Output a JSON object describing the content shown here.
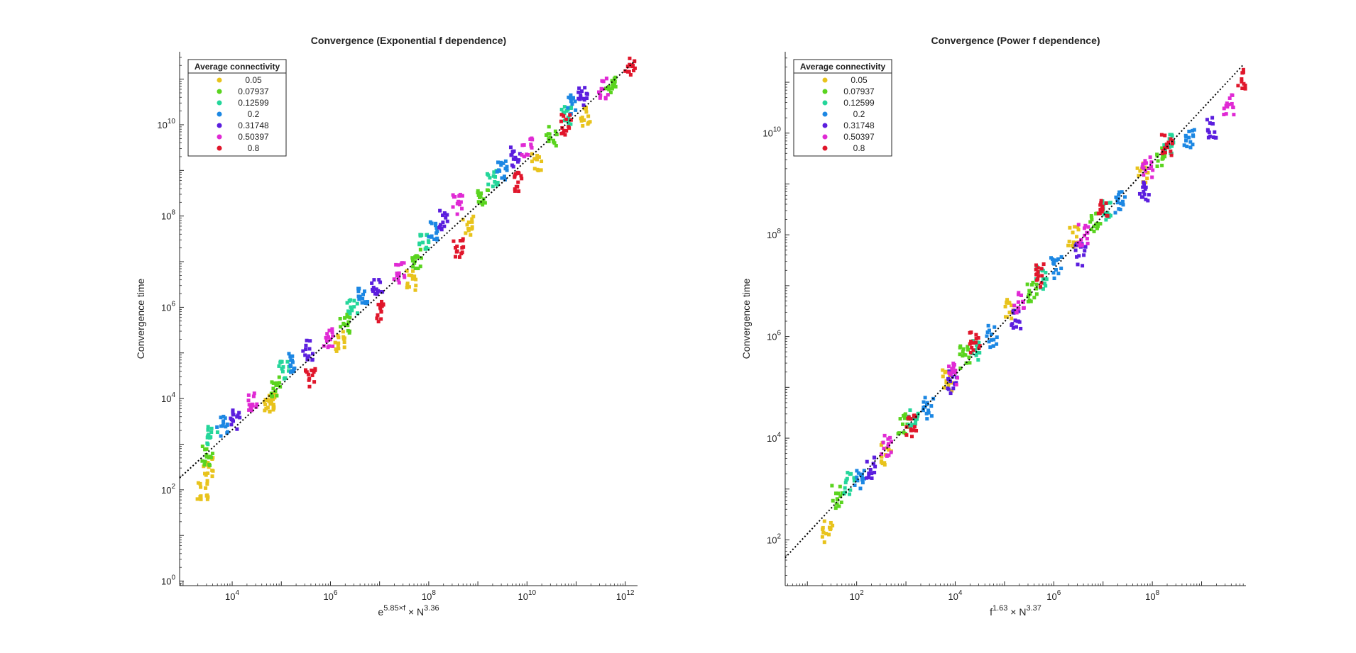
{
  "chart_data": [
    {
      "type": "scatter",
      "title": "Convergence (Exponential f dependence)",
      "xlabel_base": "e",
      "xlabel_exp1": "5.85×f",
      "xlabel_mid": " × N",
      "xlabel_exp2": "3.36",
      "ylabel": "Convergence time",
      "x_scale": "log",
      "y_scale": "log",
      "xlim_log10": [
        2.93,
        12.25
      ],
      "ylim_log10": [
        -0.1,
        11.6
      ],
      "x_ticks": [
        {
          "base": "10",
          "exp": "4",
          "log": 4
        },
        {
          "base": "10",
          "exp": "6",
          "log": 6
        },
        {
          "base": "10",
          "exp": "8",
          "log": 8
        },
        {
          "base": "10",
          "exp": "10",
          "log": 10
        },
        {
          "base": "10",
          "exp": "12",
          "log": 12
        }
      ],
      "y_ticks": [
        {
          "base": "10",
          "exp": "0",
          "log": 0
        },
        {
          "base": "10",
          "exp": "2",
          "log": 2
        },
        {
          "base": "10",
          "exp": "4",
          "log": 4
        },
        {
          "base": "10",
          "exp": "6",
          "log": 6
        },
        {
          "base": "10",
          "exp": "8",
          "log": 8
        },
        {
          "base": "10",
          "exp": "10",
          "log": 10
        }
      ],
      "legend_title": "Average connectivity",
      "legend_location": "top-left",
      "fit_line": {
        "style": "dotted",
        "color": "#000000",
        "points_log10": [
          [
            2.93,
            2.26
          ],
          [
            12.2,
            11.4
          ]
        ]
      },
      "series": [
        {
          "name": "0.05",
          "color": "#e8c31c",
          "clusters_log10": [
            [
              3.4,
              2.0
            ],
            [
              3.5,
              2.5
            ],
            [
              4.75,
              3.9
            ],
            [
              4.8,
              4.0
            ],
            [
              6.2,
              5.25
            ],
            [
              7.65,
              6.6
            ],
            [
              8.8,
              7.8
            ],
            [
              10.2,
              9.15
            ],
            [
              11.2,
              10.2
            ]
          ]
        },
        {
          "name": "0.07937",
          "color": "#5ad41f",
          "clusters_log10": [
            [
              3.5,
              2.75
            ],
            [
              4.9,
              4.25
            ],
            [
              6.3,
              5.65
            ],
            [
              7.75,
              7.05
            ],
            [
              9.1,
              8.4
            ],
            [
              10.5,
              9.75
            ],
            [
              11.7,
              10.9
            ]
          ]
        },
        {
          "name": "0.12599",
          "color": "#24d69a",
          "clusters_log10": [
            [
              3.6,
              3.2
            ],
            [
              5.05,
              4.6
            ],
            [
              6.45,
              6.0
            ],
            [
              7.9,
              7.4
            ],
            [
              9.3,
              8.8
            ],
            [
              10.8,
              10.2
            ]
          ]
        },
        {
          "name": "0.2",
          "color": "#1c87e3",
          "clusters_log10": [
            [
              3.8,
              3.4
            ],
            [
              5.25,
              4.8
            ],
            [
              6.65,
              6.25
            ],
            [
              8.1,
              7.7
            ],
            [
              9.5,
              9.0
            ],
            [
              10.9,
              10.45
            ]
          ]
        },
        {
          "name": "0.31748",
          "color": "#5b1ede",
          "clusters_log10": [
            [
              4.05,
              3.55
            ],
            [
              5.55,
              5.05
            ],
            [
              6.95,
              6.4
            ],
            [
              8.3,
              7.9
            ],
            [
              9.75,
              9.3
            ],
            [
              11.15,
              10.6
            ]
          ]
        },
        {
          "name": "0.50397",
          "color": "#e02ad4",
          "clusters_log10": [
            [
              4.4,
              3.95
            ],
            [
              5.95,
              5.35
            ],
            [
              7.4,
              6.75
            ],
            [
              8.6,
              8.25
            ],
            [
              10.0,
              9.5
            ],
            [
              11.55,
              10.8
            ]
          ]
        },
        {
          "name": "0.8",
          "color": "#e0162b",
          "clusters_log10": [
            [
              5.6,
              4.45
            ],
            [
              7.0,
              5.9
            ],
            [
              8.6,
              7.3
            ],
            [
              9.8,
              8.75
            ],
            [
              10.8,
              10.0
            ],
            [
              12.1,
              11.3
            ]
          ]
        }
      ]
    },
    {
      "type": "scatter",
      "title": "Convergence (Power f dependence)",
      "xlabel_base": "f",
      "xlabel_exp1": "1.63",
      "xlabel_mid": " × N",
      "xlabel_exp2": "3.37",
      "ylabel": "Convergence time",
      "x_scale": "log",
      "y_scale": "log",
      "xlim_log10": [
        0.55,
        9.9
      ],
      "ylim_log10": [
        1.1,
        11.6
      ],
      "x_ticks": [
        {
          "base": "10",
          "exp": "2",
          "log": 2
        },
        {
          "base": "10",
          "exp": "4",
          "log": 4
        },
        {
          "base": "10",
          "exp": "6",
          "log": 6
        },
        {
          "base": "10",
          "exp": "8",
          "log": 8
        }
      ],
      "y_ticks": [
        {
          "base": "10",
          "exp": "2",
          "log": 2
        },
        {
          "base": "10",
          "exp": "4",
          "log": 4
        },
        {
          "base": "10",
          "exp": "6",
          "log": 6
        },
        {
          "base": "10",
          "exp": "8",
          "log": 8
        },
        {
          "base": "10",
          "exp": "10",
          "log": 10
        }
      ],
      "legend_title": "Average connectivity",
      "legend_location": "top-left",
      "fit_line": {
        "style": "dotted",
        "color": "#000000",
        "points_log10": [
          [
            0.55,
            1.65
          ],
          [
            9.85,
            11.35
          ]
        ]
      },
      "series": [
        {
          "name": "0.05",
          "color": "#e8c31c",
          "clusters_log10": [
            [
              1.4,
              2.15
            ],
            [
              2.6,
              3.7
            ],
            [
              3.85,
              5.15
            ],
            [
              5.1,
              6.55
            ],
            [
              6.4,
              7.95
            ],
            [
              7.8,
              9.25
            ]
          ]
        },
        {
          "name": "0.07937",
          "color": "#5ad41f",
          "clusters_log10": [
            [
              1.6,
              2.85
            ],
            [
              2.95,
              4.25
            ],
            [
              4.2,
              5.6
            ],
            [
              5.55,
              6.85
            ],
            [
              6.85,
              8.25
            ],
            [
              8.15,
              9.55
            ]
          ]
        },
        {
          "name": "0.12599",
          "color": "#24d69a",
          "clusters_log10": [
            [
              1.85,
              3.1
            ],
            [
              3.15,
              4.4
            ],
            [
              4.45,
              5.75
            ],
            [
              5.75,
              7.15
            ],
            [
              7.05,
              8.5
            ],
            [
              8.35,
              9.75
            ]
          ]
        },
        {
          "name": "0.2",
          "color": "#1c87e3",
          "clusters_log10": [
            [
              2.05,
              3.15
            ],
            [
              3.45,
              4.6
            ],
            [
              4.75,
              6.0
            ],
            [
              6.05,
              7.35
            ],
            [
              7.35,
              8.65
            ],
            [
              8.75,
              9.9
            ]
          ]
        },
        {
          "name": "0.31748",
          "color": "#5b1ede",
          "clusters_log10": [
            [
              2.3,
              3.4
            ],
            [
              3.95,
              5.1
            ],
            [
              5.25,
              6.35
            ],
            [
              6.55,
              7.6
            ],
            [
              7.85,
              8.85
            ],
            [
              9.2,
              10.1
            ]
          ]
        },
        {
          "name": "0.50397",
          "color": "#e02ad4",
          "clusters_log10": [
            [
              2.6,
              3.85
            ],
            [
              3.95,
              5.25
            ],
            [
              5.3,
              6.65
            ],
            [
              6.6,
              8.0
            ],
            [
              7.9,
              9.35
            ],
            [
              9.55,
              10.55
            ]
          ]
        },
        {
          "name": "0.8",
          "color": "#e0162b",
          "clusters_log10": [
            [
              3.1,
              4.25
            ],
            [
              4.4,
              5.9
            ],
            [
              5.7,
              7.2
            ],
            [
              7.0,
              8.5
            ],
            [
              8.3,
              9.75
            ],
            [
              9.85,
              11.05
            ]
          ]
        }
      ]
    }
  ]
}
